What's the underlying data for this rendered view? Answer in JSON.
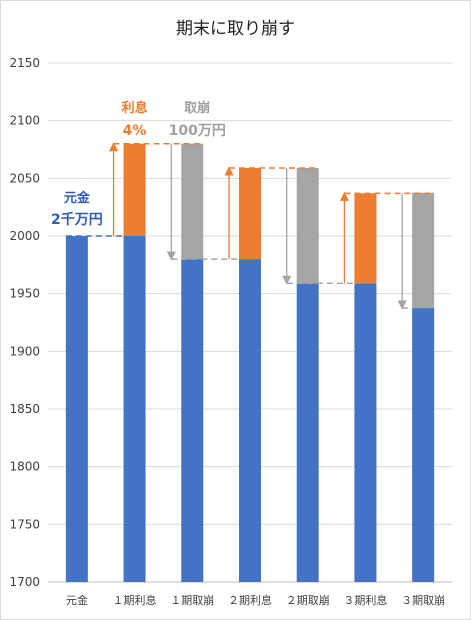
{
  "chart_data": {
    "type": "bar",
    "title": "期末に取り崩す",
    "ylim": [
      1700,
      2150
    ],
    "yticks": [
      1700,
      1750,
      1800,
      1850,
      1900,
      1950,
      2000,
      2050,
      2100,
      2150
    ],
    "categories": [
      "元金",
      "１期利息",
      "１期取崩",
      "２期利息",
      "２期取崩",
      "３期利息",
      "３期取崩"
    ],
    "series": [
      {
        "color": "#4472c4",
        "values": [
          2000,
          2000,
          1980,
          1980,
          1959,
          1959,
          1937.5
        ]
      },
      {
        "color": "#ed7d31",
        "values": [
          0,
          80,
          0,
          79,
          0,
          78,
          0
        ]
      },
      {
        "color": "#a5a5a5",
        "values": [
          0,
          0,
          100,
          0,
          100,
          0,
          100
        ]
      }
    ],
    "grid": true,
    "legend": "none"
  },
  "annotations": {
    "interest_label": "利息",
    "interest_rate": "4%",
    "withdraw_label": "取崩",
    "withdraw_amount": "100万円",
    "principal_label": "元金",
    "principal_amount": "2千万円"
  },
  "colors": {
    "principal": "#4472c4",
    "interest": "#ed7d31",
    "withdraw": "#a5a5a5",
    "principal_text": "#2e5cb8",
    "withdraw_text": "#a0a0a0"
  }
}
